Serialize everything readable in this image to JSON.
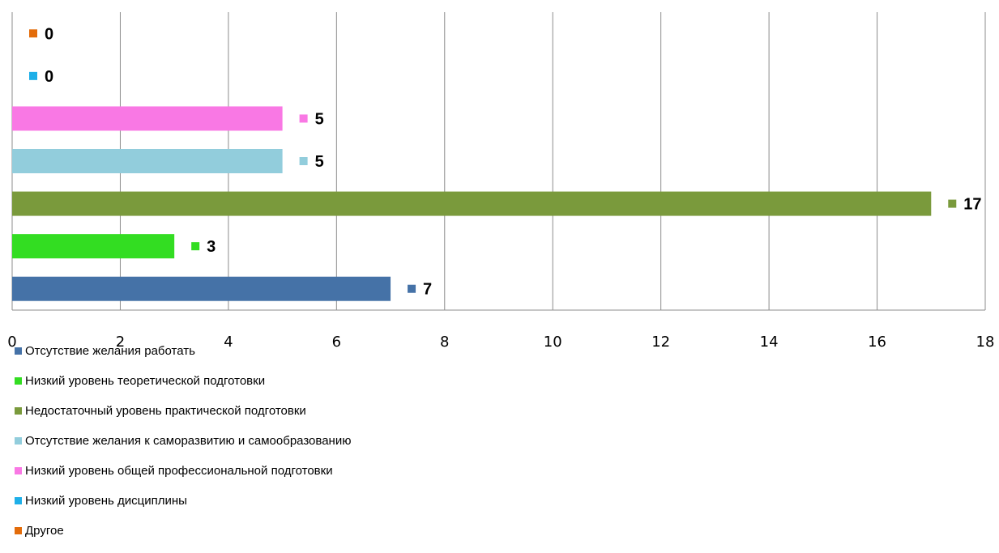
{
  "chart_data": {
    "type": "bar",
    "orientation": "horizontal",
    "xlim": [
      0,
      18
    ],
    "ticks": [
      0,
      2,
      4,
      6,
      8,
      10,
      12,
      14,
      16,
      18
    ],
    "grid": true,
    "legend_position": "bottom-left",
    "series": [
      {
        "name": "Отсутствие желания работать",
        "value": 7,
        "color": "#4572A7"
      },
      {
        "name": "Низкий уровень теоретической подготовки",
        "value": 3,
        "color": "#33DD22"
      },
      {
        "name": "Недостаточный уровень практической подготовки",
        "value": 17,
        "color": "#7A9A3C"
      },
      {
        "name": "Отсутствие желания к саморазвитию и самообразованию",
        "value": 5,
        "color": "#92CDDC"
      },
      {
        "name": "Низкий уровень общей профессиональной подготовки",
        "value": 5,
        "color": "#F978E4"
      },
      {
        "name": "Низкий уровень дисциплины",
        "value": 0,
        "color": "#1EAFE8"
      },
      {
        "name": "Другое",
        "value": 0,
        "color": "#E36C0A"
      }
    ]
  }
}
